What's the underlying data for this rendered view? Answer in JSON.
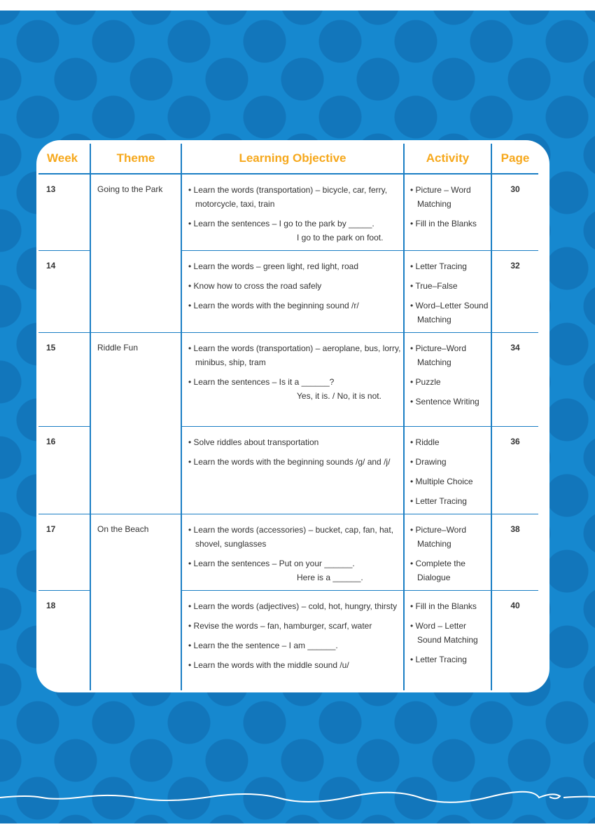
{
  "header": {
    "week": "Week",
    "theme": "Theme",
    "objective": "Learning Objective",
    "activity": "Activity",
    "page": "Page"
  },
  "colors": {
    "background": "#1688cf",
    "header_text": "#f6a81c",
    "rule": "#1a7ec4"
  },
  "rows": [
    {
      "week": "13",
      "theme": "Going to the Park",
      "objectives": [
        {
          "text": "Learn the words (transportation) – bicycle, car, ferry, motorcycle, taxi, train"
        },
        {
          "text": "Learn the sentences – I go to the park by _____.",
          "cont": "I go to the park on foot."
        }
      ],
      "activities": [
        "Picture – Word Matching",
        "Fill in the Blanks"
      ],
      "page": "30"
    },
    {
      "week": "14",
      "objectives": [
        {
          "text": "Learn the words – green light, red light, road"
        },
        {
          "text": "Know how to cross the road safely"
        },
        {
          "text": "Learn the words with the beginning sound /r/"
        }
      ],
      "activities": [
        "Letter Tracing",
        "True–False",
        "Word–Letter Sound Matching"
      ],
      "page": "32"
    },
    {
      "week": "15",
      "theme": "Riddle Fun",
      "objectives": [
        {
          "text": "Learn the words (transportation) – aeroplane, bus, lorry, minibus, ship, tram"
        },
        {
          "text": "Learn the sentences – Is it a ______?",
          "cont": "Yes, it is. / No, it is not."
        }
      ],
      "activities": [
        "Picture–Word Matching",
        "Puzzle",
        "Sentence Writing"
      ],
      "page": "34"
    },
    {
      "week": "16",
      "objectives": [
        {
          "text": "Solve riddles about transportation"
        },
        {
          "text": "Learn the words with the beginning sounds /g/ and /j/"
        }
      ],
      "activities": [
        "Riddle",
        "Drawing",
        "Multiple Choice",
        "Letter Tracing"
      ],
      "page": "36"
    },
    {
      "week": "17",
      "theme": "On the Beach",
      "objectives": [
        {
          "text": "Learn the words (accessories) – bucket, cap, fan, hat, shovel, sunglasses"
        },
        {
          "text": "Learn the sentences – Put on your ______.",
          "cont": "Here is a ______."
        }
      ],
      "activities": [
        "Picture–Word Matching",
        "Complete the Dialogue"
      ],
      "page": "38"
    },
    {
      "week": "18",
      "objectives": [
        {
          "text": "Learn the words (adjectives) – cold, hot, hungry, thirsty"
        },
        {
          "text": "Revise the words – fan, hamburger, scarf, water"
        },
        {
          "text": "Learn the the sentence – I am ______."
        },
        {
          "text": "Learn the words with the middle sound /u/"
        }
      ],
      "activities": [
        "Fill in the Blanks",
        "Word – Letter Sound Matching",
        "Letter Tracing"
      ],
      "page": "40"
    }
  ]
}
